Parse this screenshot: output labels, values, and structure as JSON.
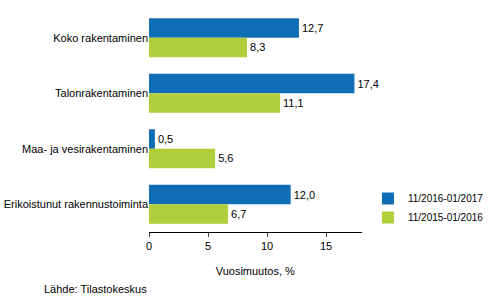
{
  "chart_data": {
    "type": "bar",
    "orientation": "horizontal",
    "categories": [
      "Koko rakentaminen",
      "Talonrakentaminen",
      "Maa- ja vesirakentaminen",
      "Erikoistunut rakennustoiminta"
    ],
    "series": [
      {
        "name": "11/2016-01/2017",
        "color": "#0f6db6",
        "values": [
          12.7,
          17.4,
          0.5,
          12.0
        ],
        "value_labels": [
          "12,7",
          "17,4",
          "0,5",
          "12,0"
        ]
      },
      {
        "name": "11/2015-01/2016",
        "color": "#b1cf3b",
        "values": [
          8.3,
          11.1,
          5.6,
          6.7
        ],
        "value_labels": [
          "8,3",
          "11,1",
          "5,6",
          "6,7"
        ]
      }
    ],
    "xlabel": "Vuosimuutos, %",
    "xlim": [
      0,
      18
    ],
    "xticks": [
      0,
      5,
      10,
      15
    ],
    "source": "Lähde: Tilastokeskus",
    "data_labels": true,
    "grid": false,
    "legend": "lower right"
  }
}
